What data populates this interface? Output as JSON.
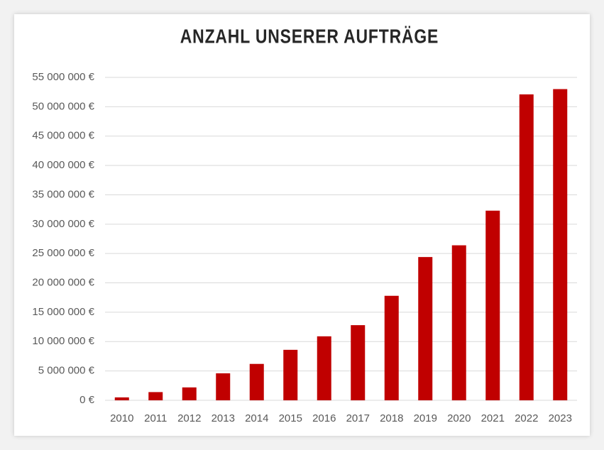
{
  "chart_data": {
    "type": "bar",
    "title": "ANZAHL UNSERER AUFTRÄGE",
    "categories": [
      "2010",
      "2011",
      "2012",
      "2013",
      "2014",
      "2015",
      "2016",
      "2017",
      "2018",
      "2019",
      "2020",
      "2021",
      "2022",
      "2023"
    ],
    "values": [
      500000,
      1400000,
      2200000,
      4600000,
      6200000,
      8600000,
      10900000,
      12800000,
      17800000,
      24400000,
      26400000,
      32300000,
      52100000,
      53000000
    ],
    "color": "#c00000",
    "ylim": [
      0,
      55000000
    ],
    "yticks": [
      {
        "value": 0,
        "label": "0 €"
      },
      {
        "value": 5000000,
        "label": "5 000 000 €"
      },
      {
        "value": 10000000,
        "label": "10 000 000 €"
      },
      {
        "value": 15000000,
        "label": "15 000 000 €"
      },
      {
        "value": 20000000,
        "label": "20 000 000 €"
      },
      {
        "value": 25000000,
        "label": "25 000 000 €"
      },
      {
        "value": 30000000,
        "label": "30 000 000 €"
      },
      {
        "value": 35000000,
        "label": "35 000 000 €"
      },
      {
        "value": 40000000,
        "label": "40 000 000 €"
      },
      {
        "value": 45000000,
        "label": "45 000 000 €"
      },
      {
        "value": 50000000,
        "label": "50 000 000 €"
      },
      {
        "value": 55000000,
        "label": "55 000 000 €"
      }
    ],
    "grid": true
  }
}
